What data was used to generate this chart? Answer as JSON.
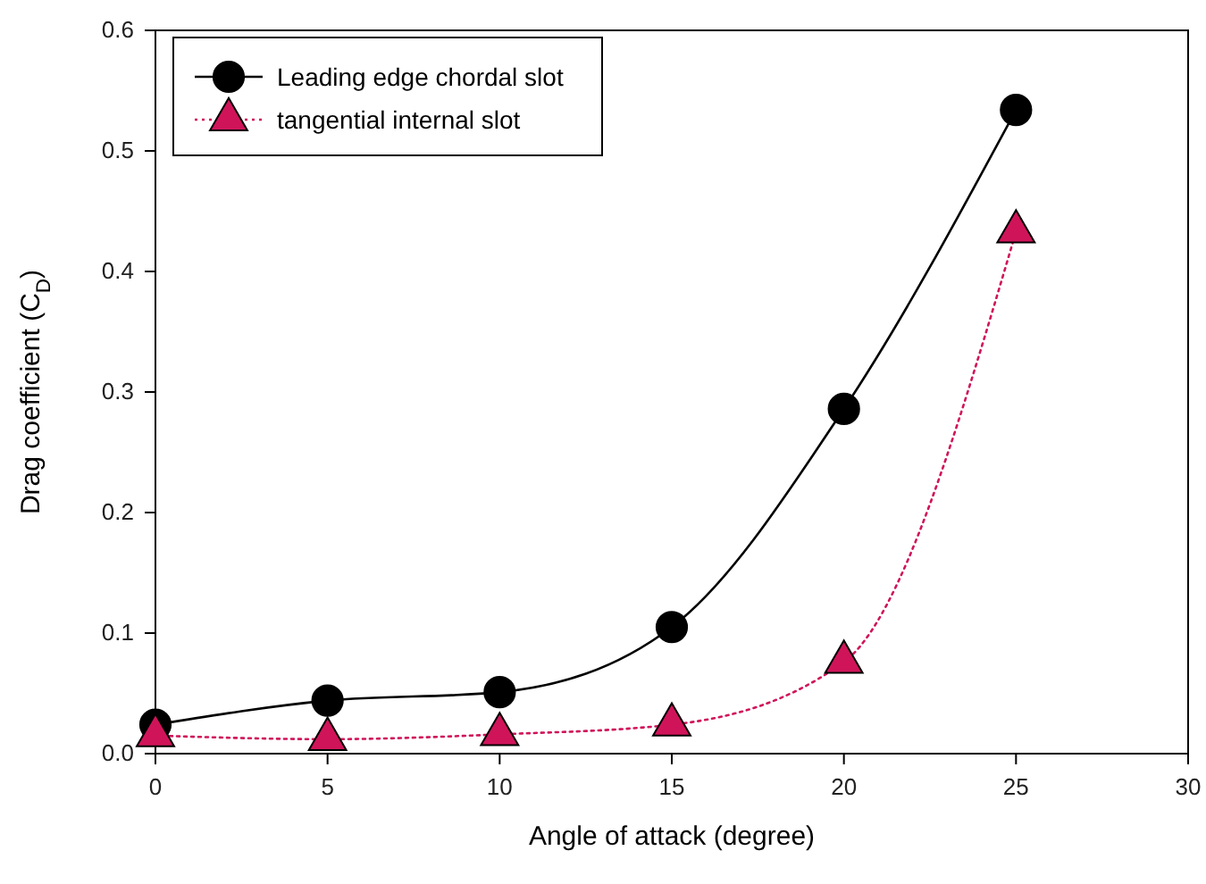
{
  "chart_data": {
    "type": "line",
    "xlabel": "Angle of attack (degree)",
    "ylabel": "Drag coefficient (C$_{D}$)",
    "x": [
      0,
      5,
      10,
      15,
      20,
      25
    ],
    "series": [
      {
        "name": "Leading edge chordal slot",
        "color": "#000000",
        "marker": "circle",
        "line_style": "solid",
        "values": [
          0.024,
          0.044,
          0.051,
          0.105,
          0.286,
          0.534
        ]
      },
      {
        "name": "tangential internal slot",
        "color": "#d0145a",
        "marker": "triangle",
        "line_style": "dotted",
        "values": [
          0.015,
          0.012,
          0.016,
          0.024,
          0.076,
          0.433
        ]
      }
    ],
    "xlim": [
      0,
      30
    ],
    "xticks": [
      0,
      5,
      10,
      15,
      20,
      25,
      30
    ],
    "ylim": [
      0,
      0.6
    ],
    "yticks": [
      {
        "value": 0,
        "label": "0.0"
      },
      0.1,
      0.2,
      0.3,
      0.4,
      0.5,
      0.6
    ],
    "grid": false,
    "legend": "top left"
  }
}
